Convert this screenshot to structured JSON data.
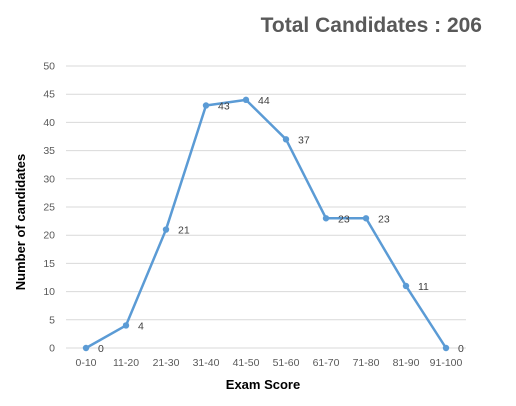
{
  "chart_data": {
    "type": "line",
    "title": "Total Candidates : 206",
    "xlabel": "Exam Score",
    "ylabel": "Number of candidates",
    "categories": [
      "0-10",
      "11-20",
      "21-30",
      "31-40",
      "41-50",
      "51-60",
      "61-70",
      "71-80",
      "81-90",
      "91-100"
    ],
    "series": [
      {
        "values": [
          0,
          4,
          21,
          43,
          44,
          37,
          23,
          23,
          11,
          0
        ],
        "color": "#5b9bd5"
      }
    ],
    "ylim": [
      0,
      50
    ],
    "yticks": [
      0,
      5,
      10,
      15,
      20,
      25,
      30,
      35,
      40,
      45,
      50
    ],
    "grid": true,
    "legend": "none",
    "data_labels": true
  }
}
